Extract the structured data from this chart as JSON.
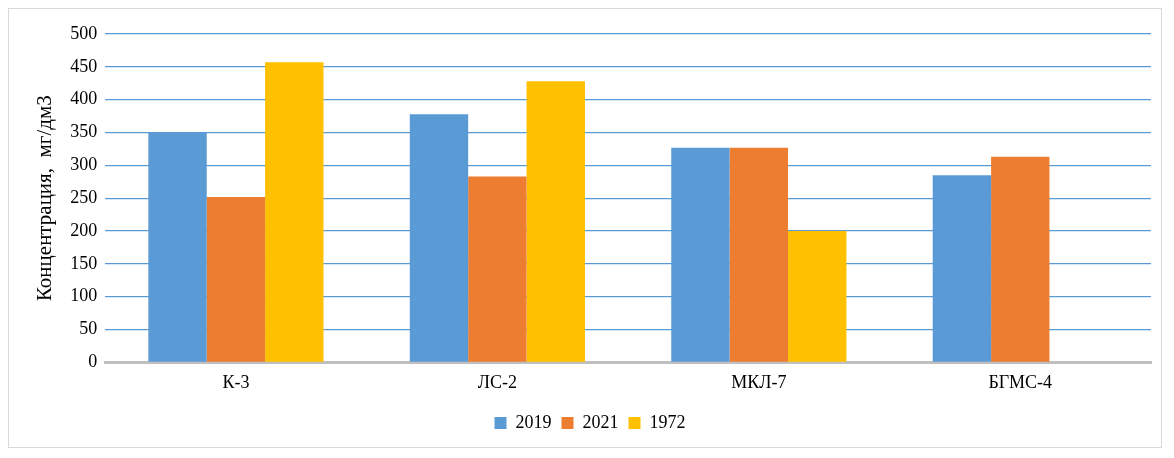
{
  "chart_data": {
    "type": "bar",
    "ylabel": "Концентрация,  мг/дм3",
    "categories": [
      "К-3",
      "ЛС-2",
      "МКЛ-7",
      "БГМС-4"
    ],
    "series": [
      {
        "name": "2019",
        "color": "#5b9bd5",
        "values": [
          350,
          378,
          327,
          285
        ]
      },
      {
        "name": "2021",
        "color": "#ed7d31",
        "values": [
          252,
          283,
          327,
          313
        ]
      },
      {
        "name": "1972",
        "color": "#ffc000",
        "values": [
          457,
          428,
          200,
          null
        ]
      }
    ],
    "ylim": [
      0,
      500
    ],
    "yticks": [
      0,
      50,
      100,
      150,
      200,
      250,
      300,
      350,
      400,
      450,
      500
    ],
    "grid": "y",
    "legend": "bottom"
  }
}
